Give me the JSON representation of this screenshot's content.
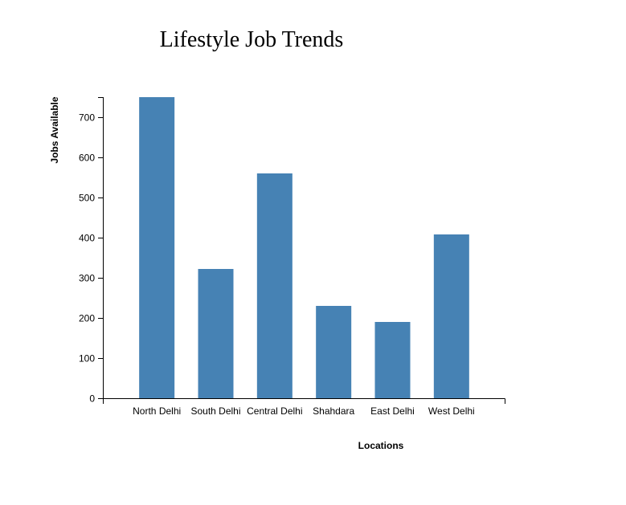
{
  "chart_data": {
    "type": "bar",
    "title": "Lifestyle Job Trends",
    "xlabel": "Locations",
    "ylabel": "Jobs Available",
    "categories": [
      "North Delhi",
      "South Delhi",
      "Central Delhi",
      "Shahdara",
      "East Delhi",
      "West Delhi"
    ],
    "values": [
      750,
      322,
      560,
      230,
      190,
      408
    ],
    "ylim": [
      0,
      750
    ],
    "yticks": [
      0,
      100,
      200,
      300,
      400,
      500,
      600,
      700
    ],
    "grid": false,
    "legend": "none",
    "bar_color": "#4682b4"
  }
}
